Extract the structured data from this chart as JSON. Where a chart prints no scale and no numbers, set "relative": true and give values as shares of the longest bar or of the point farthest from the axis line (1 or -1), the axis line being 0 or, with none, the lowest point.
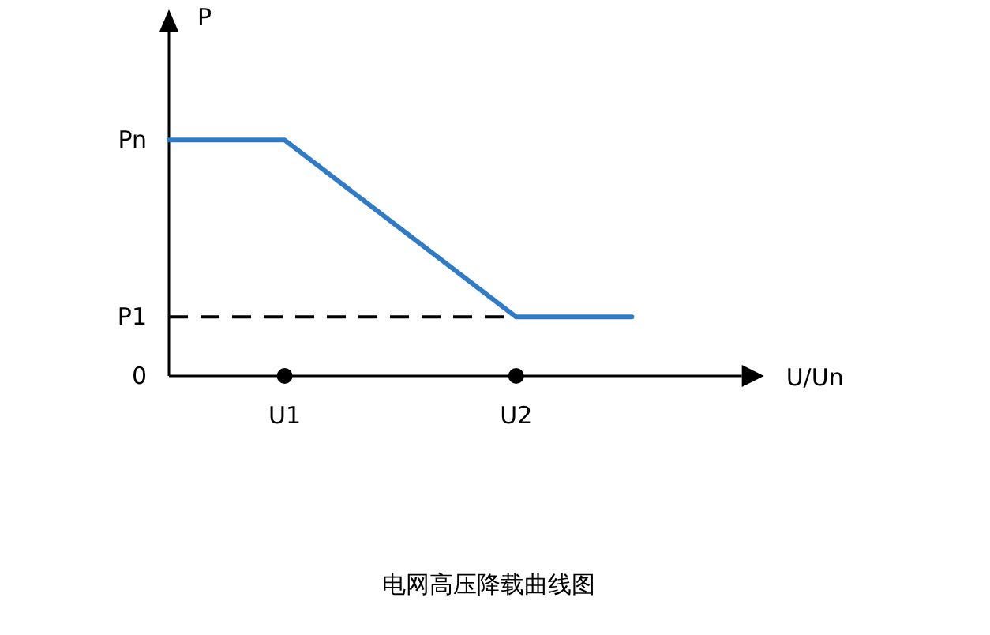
{
  "chart_data": {
    "type": "line",
    "title": "电网高压降载曲线图",
    "xlabel": "U/Un",
    "ylabel": "P",
    "relative": true,
    "categories": [
      null,
      "U1",
      null,
      "U2",
      null
    ],
    "series": [
      {
        "color": "#2f7bc8",
        "values": [
          1,
          1,
          0.625,
          0.25,
          0.25
        ]
      }
    ],
    "annotations": [
      "Pn",
      "0"
    ],
    "ref_lines": [
      {
        "axis": "y",
        "value": 0.25,
        "label": "P1",
        "line_style": "dashed",
        "color": "#000000"
      }
    ],
    "grid": false,
    "marker": "none",
    "line_style": "solid"
  }
}
